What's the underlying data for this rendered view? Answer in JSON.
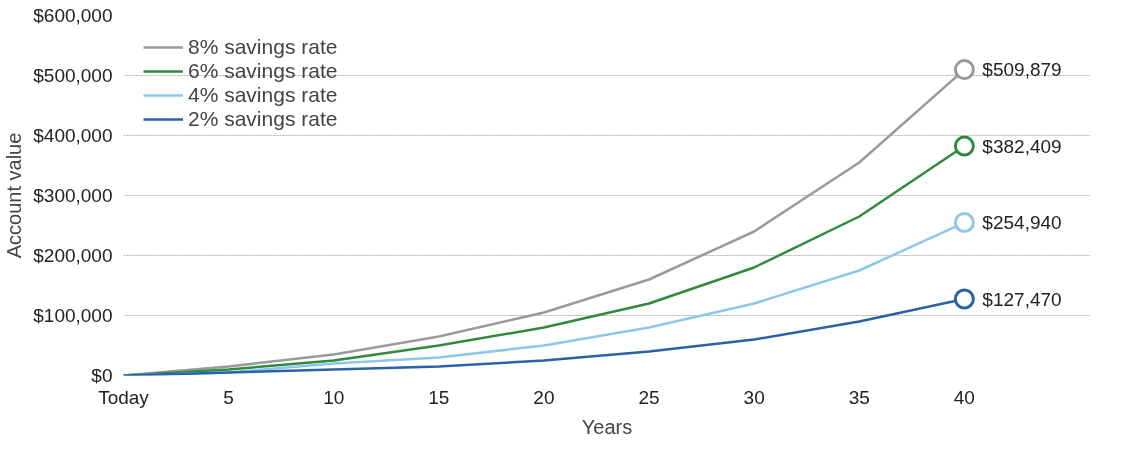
{
  "chart_data": {
    "type": "line",
    "xlabel": "Years",
    "ylabel": "Account value",
    "x": [
      0,
      5,
      10,
      15,
      20,
      25,
      30,
      35,
      40
    ],
    "xlim": [
      0,
      46
    ],
    "xticks": [
      {
        "value": 0,
        "label": "Today"
      },
      5,
      10,
      15,
      20,
      25,
      30,
      35,
      40
    ],
    "ylim": [
      0,
      600000
    ],
    "yticks": [
      {
        "value": 0,
        "label": "$0"
      },
      {
        "value": 100000,
        "label": "$100,000"
      },
      {
        "value": 200000,
        "label": "$200,000"
      },
      {
        "value": 300000,
        "label": "$300,000"
      },
      {
        "value": 400000,
        "label": "$400,000"
      },
      {
        "value": 500000,
        "label": "$500,000"
      },
      {
        "value": 600000,
        "label": "$600,000"
      }
    ],
    "grid": "y",
    "legend": "top left",
    "series": [
      {
        "name": "8% savings rate",
        "color": "#9a9a9a",
        "values": [
          0,
          15000,
          35000,
          65000,
          105000,
          160000,
          240000,
          355000,
          509879
        ],
        "value_labels": [
          null,
          null,
          null,
          null,
          null,
          null,
          null,
          null,
          "$509,879"
        ]
      },
      {
        "name": "6% savings rate",
        "color": "#2e8b3e",
        "values": [
          0,
          10000,
          25000,
          50000,
          80000,
          120000,
          180000,
          265000,
          382409
        ],
        "value_labels": [
          null,
          null,
          null,
          null,
          null,
          null,
          null,
          null,
          "$382,409"
        ]
      },
      {
        "name": "4% savings rate",
        "color": "#8ec8e8",
        "values": [
          0,
          5000,
          20000,
          30000,
          50000,
          80000,
          120000,
          175000,
          254940
        ],
        "value_labels": [
          null,
          null,
          null,
          null,
          null,
          null,
          null,
          null,
          "$254,940"
        ]
      },
      {
        "name": "2% savings rate",
        "color": "#2a62a8",
        "values": [
          0,
          5000,
          10000,
          15000,
          25000,
          40000,
          60000,
          90000,
          127470
        ],
        "value_labels": [
          null,
          null,
          null,
          null,
          null,
          null,
          null,
          null,
          "$127,470"
        ]
      }
    ]
  }
}
